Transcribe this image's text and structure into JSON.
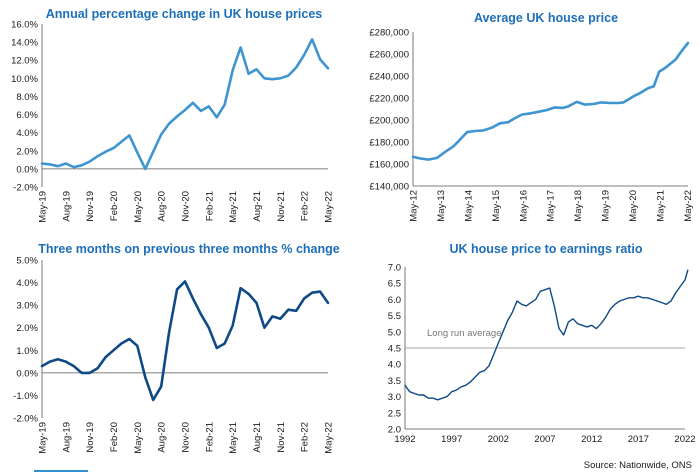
{
  "colors": {
    "title": "#1e6fb8",
    "light_line": "#3f95d0",
    "dark_line": "#0f4a87",
    "reference": "#888888"
  },
  "source": "Source: Nationwide, ONS",
  "chart_data": [
    {
      "id": "annual",
      "type": "line",
      "title": "Annual percentage change in UK house prices",
      "color": "#3f95d0",
      "ylim": [
        -2,
        16
      ],
      "yticks": [
        "-2.0%",
        "0.0%",
        "2.0%",
        "4.0%",
        "6.0%",
        "8.0%",
        "10.0%",
        "12.0%",
        "14.0%",
        "16.0%"
      ],
      "xticks": [
        "May-19",
        "Aug-19",
        "Nov-19",
        "Feb-20",
        "May-20",
        "Aug-20",
        "Nov-20",
        "Feb-21",
        "May-21",
        "Aug-21",
        "Nov-21",
        "Feb-22",
        "May-22"
      ],
      "x_step": "monthly",
      "values": [
        0.6,
        0.5,
        0.3,
        0.6,
        0.2,
        0.4,
        0.8,
        1.4,
        1.9,
        2.3,
        3.0,
        3.7,
        1.8,
        0.0,
        1.9,
        3.8,
        5.0,
        5.8,
        6.5,
        7.3,
        6.4,
        6.9,
        5.7,
        7.1,
        10.9,
        13.4,
        10.5,
        11.0,
        10.0,
        9.9,
        10.0,
        10.3,
        11.2,
        12.6,
        14.3,
        12.1,
        11.1
      ]
    },
    {
      "id": "price",
      "type": "line",
      "title": "Average UK house price",
      "color": "#3f95d0",
      "ylim": [
        140000,
        280000
      ],
      "yticks": [
        "£140,000",
        "£160,000",
        "£180,000",
        "£200,000",
        "£220,000",
        "£240,000",
        "£260,000",
        "£280,000"
      ],
      "xticks": [
        "May-12",
        "May-13",
        "May-14",
        "May-15",
        "May-16",
        "May-17",
        "May-18",
        "May-19",
        "May-20",
        "May-21",
        "May-22"
      ],
      "x": [
        2012.33,
        2012.6,
        2012.9,
        2013.2,
        2013.5,
        2013.8,
        2014.0,
        2014.3,
        2014.6,
        2014.9,
        2015.2,
        2015.5,
        2015.8,
        2016.0,
        2016.3,
        2016.6,
        2016.9,
        2017.2,
        2017.5,
        2017.8,
        2018.0,
        2018.3,
        2018.6,
        2018.9,
        2019.2,
        2019.5,
        2019.8,
        2020.0,
        2020.2,
        2020.4,
        2020.6,
        2020.9,
        2021.1,
        2021.3,
        2021.5,
        2021.7,
        2021.9,
        2022.1,
        2022.25,
        2022.35
      ],
      "values": [
        166500,
        165000,
        164000,
        165500,
        171000,
        176000,
        181000,
        189000,
        190000,
        190500,
        193000,
        197000,
        198000,
        201000,
        205000,
        206000,
        207500,
        209000,
        211500,
        211000,
        212500,
        216500,
        214000,
        214500,
        216000,
        215500,
        215500,
        216000,
        219000,
        222000,
        224500,
        229000,
        230500,
        244000,
        247000,
        251000,
        255000,
        262000,
        267000,
        270000
      ]
    },
    {
      "id": "threemonth",
      "type": "line",
      "title": "Three months on previous three months % change",
      "color": "#0f4a87",
      "ylim": [
        -2,
        5
      ],
      "yticks": [
        "-2.0%",
        "-1.0%",
        "0.0%",
        "1.0%",
        "2.0%",
        "3.0%",
        "4.0%",
        "5.0%"
      ],
      "xticks": [
        "May-19",
        "Aug-19",
        "Nov-19",
        "Feb-20",
        "May-20",
        "Aug-20",
        "Nov-20",
        "Feb-21",
        "May-21",
        "Aug-21",
        "Nov-21",
        "Feb-22",
        "May-22"
      ],
      "x_step": "monthly",
      "values": [
        0.3,
        0.5,
        0.6,
        0.5,
        0.3,
        0.0,
        0.0,
        0.2,
        0.7,
        1.0,
        1.3,
        1.5,
        1.2,
        -0.2,
        -1.2,
        -0.6,
        1.8,
        3.7,
        4.05,
        3.3,
        2.6,
        2.0,
        1.1,
        1.3,
        2.1,
        3.75,
        3.5,
        3.1,
        2.0,
        2.5,
        2.4,
        2.8,
        2.75,
        3.3,
        3.55,
        3.6,
        3.1
      ]
    },
    {
      "id": "ratio",
      "type": "line",
      "title": "UK house price to earnings ratio",
      "color": "#0f4a87",
      "ylim": [
        2.0,
        7.0
      ],
      "yticks": [
        "2.0",
        "2.5",
        "3.0",
        "3.5",
        "4.0",
        "4.5",
        "5.0",
        "5.5",
        "6.0",
        "6.5",
        "7.0"
      ],
      "xticks": [
        "1992",
        "1997",
        "2002",
        "2007",
        "2012",
        "2017",
        "2022"
      ],
      "xlim": [
        1992,
        2022
      ],
      "reference": {
        "value": 4.5,
        "label": "Long run average"
      },
      "x": [
        1992.0,
        1992.5,
        1993.0,
        1993.5,
        1994.0,
        1994.5,
        1995.0,
        1995.5,
        1996.0,
        1996.5,
        1997.0,
        1997.5,
        1998.0,
        1998.5,
        1999.0,
        1999.5,
        2000.0,
        2000.5,
        2001.0,
        2001.5,
        2002.0,
        2002.5,
        2003.0,
        2003.5,
        2004.0,
        2004.5,
        2005.0,
        2005.5,
        2006.0,
        2006.5,
        2007.0,
        2007.5,
        2008.0,
        2008.5,
        2009.0,
        2009.5,
        2010.0,
        2010.5,
        2011.0,
        2011.5,
        2012.0,
        2012.5,
        2013.0,
        2013.5,
        2014.0,
        2014.5,
        2015.0,
        2015.5,
        2016.0,
        2016.5,
        2017.0,
        2017.5,
        2018.0,
        2018.5,
        2019.0,
        2019.5,
        2020.0,
        2020.5,
        2021.0,
        2021.5,
        2022.0,
        2022.3
      ],
      "values": [
        3.35,
        3.15,
        3.1,
        3.05,
        3.05,
        2.95,
        2.95,
        2.9,
        2.95,
        3.0,
        3.15,
        3.2,
        3.3,
        3.35,
        3.45,
        3.6,
        3.75,
        3.8,
        3.95,
        4.3,
        4.65,
        5.0,
        5.35,
        5.6,
        5.95,
        5.85,
        5.8,
        5.9,
        6.0,
        6.25,
        6.3,
        6.35,
        5.8,
        5.1,
        4.9,
        5.3,
        5.4,
        5.25,
        5.2,
        5.15,
        5.2,
        5.1,
        5.25,
        5.45,
        5.7,
        5.85,
        5.95,
        6.0,
        6.05,
        6.05,
        6.1,
        6.05,
        6.05,
        6.0,
        5.95,
        5.9,
        5.85,
        5.95,
        6.2,
        6.4,
        6.6,
        6.9
      ]
    }
  ]
}
